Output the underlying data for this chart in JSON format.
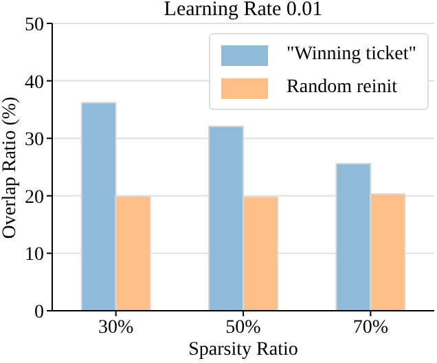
{
  "chart_data": {
    "type": "bar",
    "title": "Learning Rate 0.01",
    "xlabel": "Sparsity Ratio",
    "ylabel": "Overlap Ratio (%)",
    "categories": [
      "30%",
      "50%",
      "70%"
    ],
    "series": [
      {
        "name": "\"Winning ticket\"",
        "color": "#8fbbd9",
        "values": [
          36.2,
          32.1,
          25.6
        ]
      },
      {
        "name": "Random reinit",
        "color": "#ffbf86",
        "values": [
          19.9,
          19.8,
          20.3
        ]
      }
    ],
    "ylim": [
      0,
      50
    ],
    "yticks": [
      0,
      10,
      20,
      30,
      40,
      50
    ],
    "grid": "y",
    "legend": "top right"
  }
}
